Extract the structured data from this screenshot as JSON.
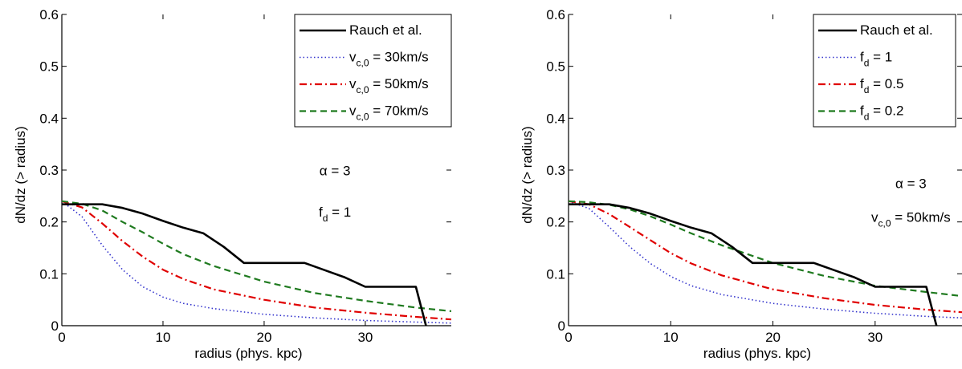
{
  "chart_data": [
    {
      "type": "line",
      "title": "",
      "xlabel": "radius (phys. kpc)",
      "ylabel": "dN/dz (> radius)",
      "xlim": [
        0,
        38.5
      ],
      "ylim": [
        0,
        0.6
      ],
      "xticks": [
        0,
        10,
        20,
        30
      ],
      "yticks": [
        0,
        0.1,
        0.2,
        0.3,
        0.4,
        0.5,
        0.6
      ],
      "xtick_labels": [
        "0",
        "10",
        "20",
        "30"
      ],
      "ytick_labels": [
        "0",
        "0.1",
        "0.2",
        "0.3",
        "0.4",
        "0.5",
        "0.6"
      ],
      "grid": false,
      "legend_position": "top-right",
      "annotations": [
        {
          "base": "α = 3",
          "sub": "",
          "tail": "",
          "x": 27,
          "y": 0.29
        },
        {
          "base": "f",
          "sub": "d",
          "tail": " = 1",
          "x": 27,
          "y": 0.21
        }
      ],
      "series": [
        {
          "base": "Rauch et al.",
          "sub": "",
          "tail": "",
          "color": "#000000",
          "style": "solid",
          "x": [
            0,
            4,
            6,
            8,
            10,
            12,
            14,
            16,
            18,
            24,
            26,
            28,
            30,
            35,
            36
          ],
          "y": [
            0.234,
            0.234,
            0.227,
            0.216,
            0.202,
            0.189,
            0.178,
            0.152,
            0.121,
            0.121,
            0.107,
            0.093,
            0.075,
            0.075,
            0
          ]
        },
        {
          "base": "v",
          "sub": "c,0",
          "tail": " = 30km/s",
          "color": "#3333cc",
          "style": "dotted",
          "x": [
            0,
            2,
            4,
            6,
            8,
            10,
            12,
            15,
            20,
            25,
            30,
            35,
            38.5
          ],
          "y": [
            0.24,
            0.21,
            0.155,
            0.108,
            0.075,
            0.055,
            0.043,
            0.033,
            0.022,
            0.015,
            0.01,
            0.007,
            0.005
          ]
        },
        {
          "base": "v",
          "sub": "c,0",
          "tail": " = 50km/s",
          "color": "#e00000",
          "style": "dashdot",
          "x": [
            0,
            2,
            4,
            6,
            8,
            10,
            12,
            15,
            20,
            25,
            30,
            35,
            38.5
          ],
          "y": [
            0.24,
            0.228,
            0.197,
            0.163,
            0.133,
            0.108,
            0.09,
            0.07,
            0.05,
            0.035,
            0.025,
            0.017,
            0.012
          ]
        },
        {
          "base": "v",
          "sub": "c,0",
          "tail": " = 70km/s",
          "color": "#1f7a1f",
          "style": "dashed",
          "x": [
            0,
            2,
            4,
            6,
            8,
            10,
            12,
            15,
            20,
            25,
            30,
            35,
            38.5
          ],
          "y": [
            0.24,
            0.235,
            0.222,
            0.2,
            0.18,
            0.158,
            0.138,
            0.115,
            0.085,
            0.063,
            0.048,
            0.035,
            0.028
          ]
        }
      ]
    },
    {
      "type": "line",
      "title": "",
      "xlabel": "radius (phys. kpc)",
      "ylabel": "dN/dz (> radius)",
      "xlim": [
        0,
        38.5
      ],
      "ylim": [
        0,
        0.6
      ],
      "xticks": [
        0,
        10,
        20,
        30
      ],
      "yticks": [
        0,
        0.1,
        0.2,
        0.3,
        0.4,
        0.5,
        0.6
      ],
      "xtick_labels": [
        "0",
        "10",
        "20",
        "30"
      ],
      "ytick_labels": [
        "0",
        "0.1",
        "0.2",
        "0.3",
        "0.4",
        "0.5",
        "0.6"
      ],
      "grid": false,
      "legend_position": "top-right",
      "annotations": [
        {
          "base": "α = 3",
          "sub": "",
          "tail": "",
          "x": 33.5,
          "y": 0.265
        },
        {
          "base": "v",
          "sub": "c,0",
          "tail": " = 50km/s",
          "x": 33.5,
          "y": 0.2
        }
      ],
      "series": [
        {
          "base": "Rauch et al.",
          "sub": "",
          "tail": "",
          "color": "#000000",
          "style": "solid",
          "x": [
            0,
            4,
            6,
            8,
            10,
            12,
            14,
            16,
            18,
            24,
            26,
            28,
            30,
            35,
            36
          ],
          "y": [
            0.234,
            0.234,
            0.227,
            0.216,
            0.202,
            0.189,
            0.178,
            0.152,
            0.121,
            0.121,
            0.107,
            0.093,
            0.075,
            0.075,
            0
          ]
        },
        {
          "base": "f",
          "sub": "d",
          "tail": " = 1",
          "color": "#3333cc",
          "style": "dotted",
          "x": [
            0,
            2,
            4,
            6,
            8,
            10,
            12,
            15,
            20,
            25,
            30,
            35,
            38.5
          ],
          "y": [
            0.24,
            0.226,
            0.19,
            0.152,
            0.12,
            0.095,
            0.077,
            0.06,
            0.043,
            0.032,
            0.024,
            0.018,
            0.015
          ]
        },
        {
          "base": "f",
          "sub": "d",
          "tail": " = 0.5",
          "color": "#e00000",
          "style": "dashdot",
          "x": [
            0,
            2,
            4,
            6,
            8,
            10,
            12,
            15,
            20,
            25,
            30,
            35,
            38.5
          ],
          "y": [
            0.24,
            0.234,
            0.215,
            0.19,
            0.165,
            0.14,
            0.12,
            0.097,
            0.07,
            0.053,
            0.04,
            0.031,
            0.026
          ]
        },
        {
          "base": "f",
          "sub": "d",
          "tail": " = 0.2",
          "color": "#1f7a1f",
          "style": "dashed",
          "x": [
            0,
            2,
            4,
            6,
            8,
            10,
            12,
            15,
            20,
            25,
            30,
            35,
            38.5
          ],
          "y": [
            0.24,
            0.238,
            0.233,
            0.224,
            0.211,
            0.195,
            0.178,
            0.155,
            0.121,
            0.096,
            0.077,
            0.065,
            0.057
          ]
        }
      ]
    }
  ]
}
